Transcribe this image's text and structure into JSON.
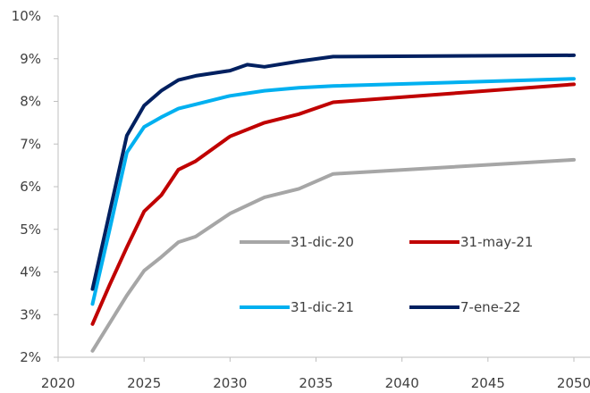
{
  "chart_data": {
    "type": "line",
    "title": "",
    "xlabel": "",
    "ylabel": "",
    "xlim": [
      2020,
      2050
    ],
    "ylim": [
      2,
      10
    ],
    "x_ticks": [
      2020,
      2025,
      2030,
      2035,
      2040,
      2045,
      2050
    ],
    "x_tick_labels": [
      "2020",
      "2025",
      "2030",
      "2035",
      "2040",
      "2045",
      "2050"
    ],
    "y_ticks": [
      2,
      3,
      4,
      5,
      6,
      7,
      8,
      9,
      10
    ],
    "y_tick_labels": [
      "2%",
      "3%",
      "4%",
      "5%",
      "6%",
      "7%",
      "8%",
      "9%",
      "10%"
    ],
    "grid": false,
    "legend_position": "center-right",
    "series": [
      {
        "name": "31-dic-20",
        "color": "#A6A6A6",
        "points": [
          [
            2022,
            2.15
          ],
          [
            2023,
            2.8
          ],
          [
            2024,
            3.45
          ],
          [
            2025,
            4.03
          ],
          [
            2026,
            4.35
          ],
          [
            2027,
            4.7
          ],
          [
            2028,
            4.83
          ],
          [
            2030,
            5.37
          ],
          [
            2032,
            5.75
          ],
          [
            2034,
            5.95
          ],
          [
            2036,
            6.3
          ],
          [
            2050,
            6.63
          ]
        ]
      },
      {
        "name": "31-may-21",
        "color": "#C00000",
        "points": [
          [
            2022,
            2.78
          ],
          [
            2023,
            3.7
          ],
          [
            2024,
            4.58
          ],
          [
            2025,
            5.42
          ],
          [
            2026,
            5.8
          ],
          [
            2027,
            6.4
          ],
          [
            2028,
            6.6
          ],
          [
            2030,
            7.18
          ],
          [
            2032,
            7.5
          ],
          [
            2034,
            7.7
          ],
          [
            2036,
            7.98
          ],
          [
            2050,
            8.4
          ]
        ]
      },
      {
        "name": "31-dic-21",
        "color": "#00B0F0",
        "points": [
          [
            2022,
            3.25
          ],
          [
            2023,
            5.0
          ],
          [
            2024,
            6.8
          ],
          [
            2025,
            7.4
          ],
          [
            2026,
            7.63
          ],
          [
            2027,
            7.83
          ],
          [
            2028,
            7.93
          ],
          [
            2030,
            8.13
          ],
          [
            2032,
            8.25
          ],
          [
            2034,
            8.32
          ],
          [
            2036,
            8.36
          ],
          [
            2050,
            8.53
          ]
        ]
      },
      {
        "name": "7-ene-22",
        "color": "#002060",
        "points": [
          [
            2022,
            3.6
          ],
          [
            2023,
            5.4
          ],
          [
            2024,
            7.2
          ],
          [
            2025,
            7.9
          ],
          [
            2026,
            8.25
          ],
          [
            2027,
            8.5
          ],
          [
            2028,
            8.6
          ],
          [
            2030,
            8.72
          ],
          [
            2031,
            8.86
          ],
          [
            2032,
            8.81
          ],
          [
            2034,
            8.94
          ],
          [
            2036,
            9.05
          ],
          [
            2050,
            9.08
          ]
        ]
      }
    ]
  }
}
